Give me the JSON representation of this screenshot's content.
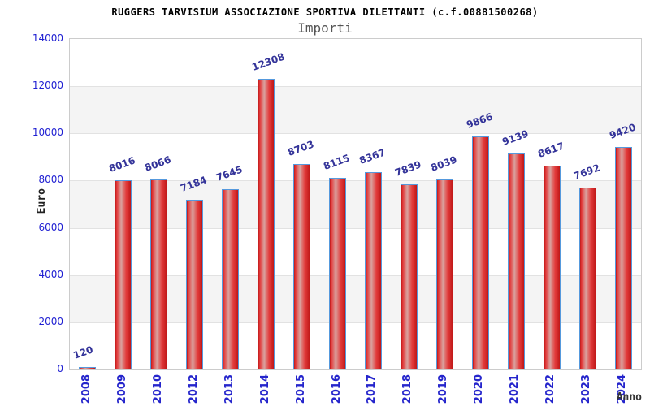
{
  "header": {
    "title": "RUGGERS TARVISIUM ASSOCIAZIONE SPORTIVA DILETTANTI (c.f.00881500268)",
    "subtitle": "Importi"
  },
  "chart_data": {
    "type": "bar",
    "title": "RUGGERS TARVISIUM ASSOCIAZIONE SPORTIVA DILETTANTI (c.f.00881500268)",
    "subtitle": "Importi",
    "xlabel": "Anno",
    "ylabel": "Euro",
    "categories": [
      "2008",
      "2009",
      "2010",
      "2012",
      "2013",
      "2014",
      "2015",
      "2016",
      "2017",
      "2018",
      "2019",
      "2020",
      "2021",
      "2022",
      "2023",
      "2024"
    ],
    "values": [
      120,
      8016,
      8066,
      7184,
      7645,
      12308,
      8703,
      8115,
      8367,
      7839,
      8039,
      9866,
      9139,
      8617,
      7692,
      9420
    ],
    "ylim": [
      0,
      14000
    ],
    "ytick_step": 2000,
    "grid": true,
    "legend_position": "none",
    "bar_labels_shown": true,
    "category_labels_rotation": "vertical",
    "colors": {
      "bar_fill_edge": "#c01818",
      "bar_fill_mid": "#e23b3b",
      "bar_fill_light": "#d9a29e",
      "bar_border": "#5599dd",
      "value_label": "#333399",
      "tick_label": "#1f1fd2",
      "category_label": "#2525cc",
      "axis_title": "#222222",
      "band": "#f4f4f4",
      "gridline": "#e2e2e2",
      "plot_border": "#cccccc",
      "title_color": "#000000",
      "subtitle_color": "#555555"
    }
  }
}
